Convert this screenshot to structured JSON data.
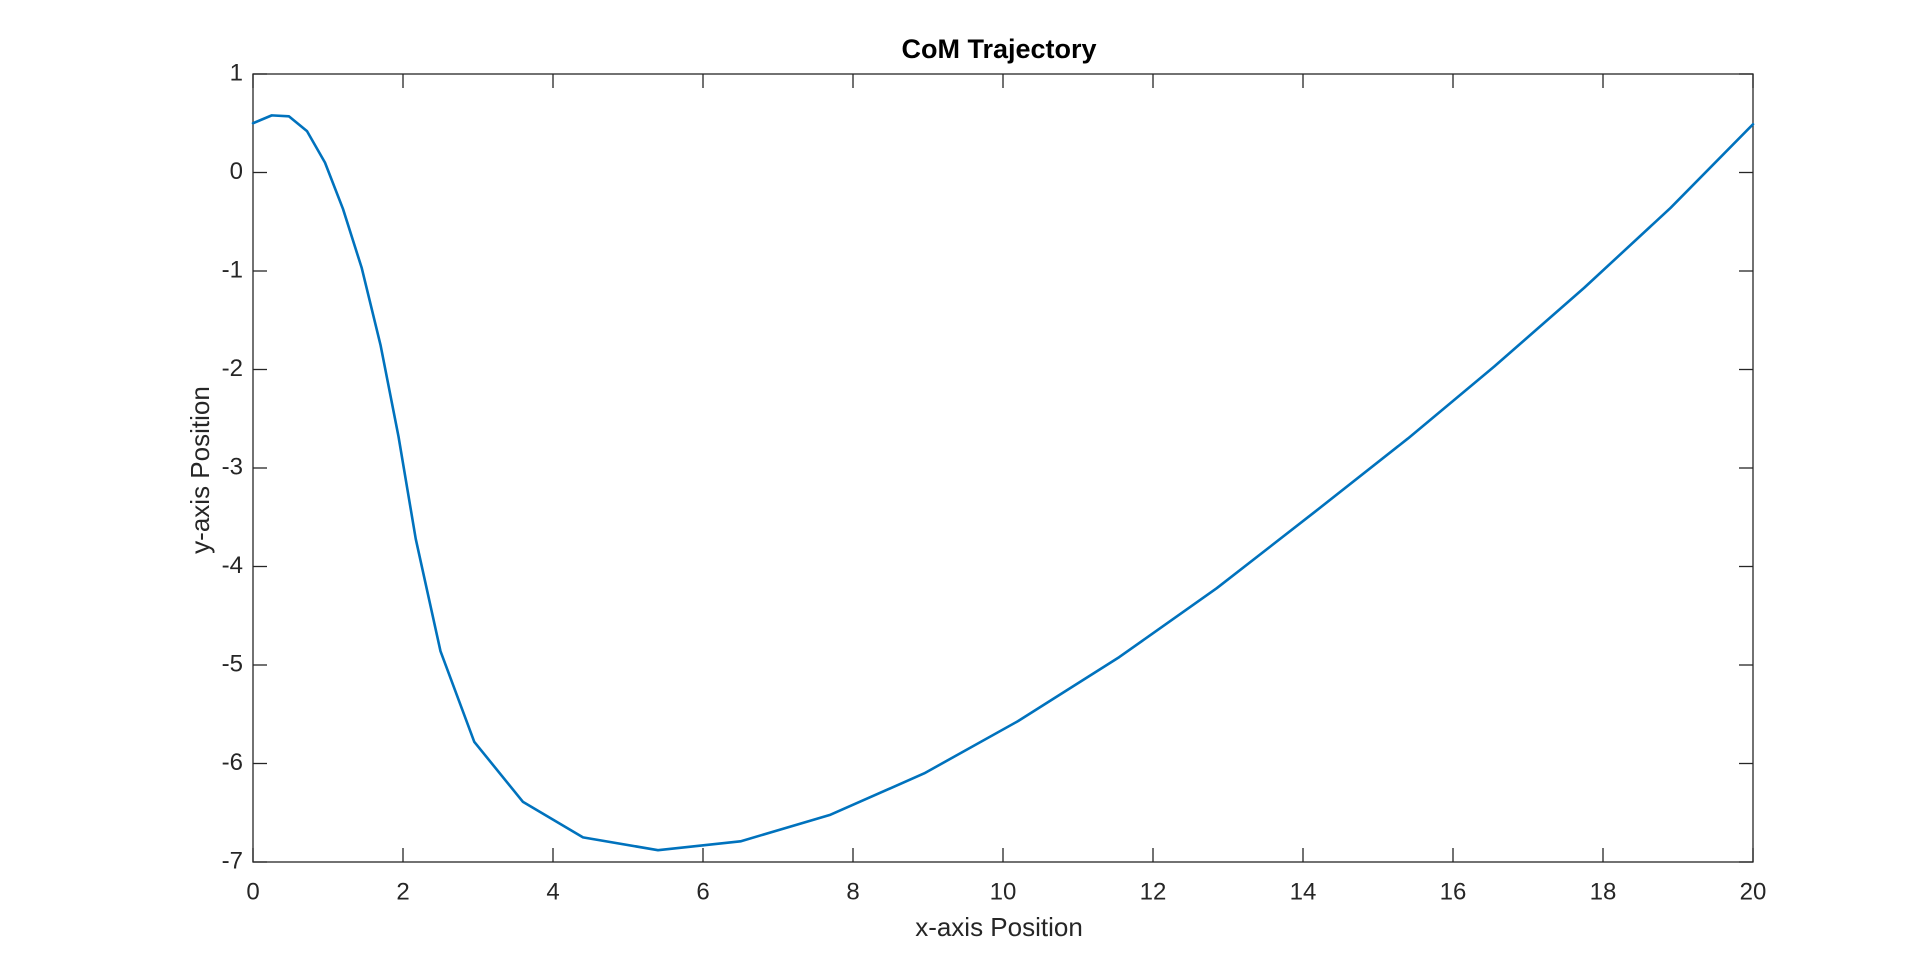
{
  "chart_data": {
    "type": "line",
    "title": "CoM Trajectory",
    "xlabel": "x-axis Position",
    "ylabel": "y-axis Position",
    "xlim": [
      0,
      20
    ],
    "ylim": [
      -7,
      1
    ],
    "xticks": [
      0,
      2,
      4,
      6,
      8,
      10,
      12,
      14,
      16,
      18,
      20
    ],
    "xtick_labels": [
      "0",
      "2",
      "4",
      "6",
      "8",
      "10",
      "12",
      "14",
      "16",
      "18",
      "20"
    ],
    "yticks": [
      1,
      0,
      -1,
      -2,
      -3,
      -4,
      -5,
      -6,
      -7
    ],
    "ytick_labels": [
      "1",
      "0",
      "-1",
      "-2",
      "-3",
      "-4",
      "-5",
      "-6",
      "-7"
    ],
    "grid": false,
    "box": true,
    "series": [
      {
        "color": "#0072BD",
        "points": [
          [
            0,
            0.5
          ],
          [
            0.25,
            0.58
          ],
          [
            0.48,
            0.57
          ],
          [
            0.72,
            0.42
          ],
          [
            0.96,
            0.1
          ],
          [
            1.2,
            -0.37
          ],
          [
            1.45,
            -0.97
          ],
          [
            1.7,
            -1.75
          ],
          [
            1.94,
            -2.68
          ],
          [
            2.17,
            -3.72
          ],
          [
            2.5,
            -4.86
          ],
          [
            2.95,
            -5.78
          ],
          [
            3.6,
            -6.39
          ],
          [
            4.4,
            -6.75
          ],
          [
            5.4,
            -6.88
          ],
          [
            6.5,
            -6.79
          ],
          [
            7.7,
            -6.52
          ],
          [
            8.95,
            -6.1
          ],
          [
            10.2,
            -5.57
          ],
          [
            11.55,
            -4.92
          ],
          [
            12.85,
            -4.22
          ],
          [
            14.15,
            -3.45
          ],
          [
            15.4,
            -2.7
          ],
          [
            16.55,
            -1.97
          ],
          [
            17.75,
            -1.17
          ],
          [
            18.9,
            -0.36
          ],
          [
            20,
            0.49
          ]
        ]
      }
    ]
  }
}
